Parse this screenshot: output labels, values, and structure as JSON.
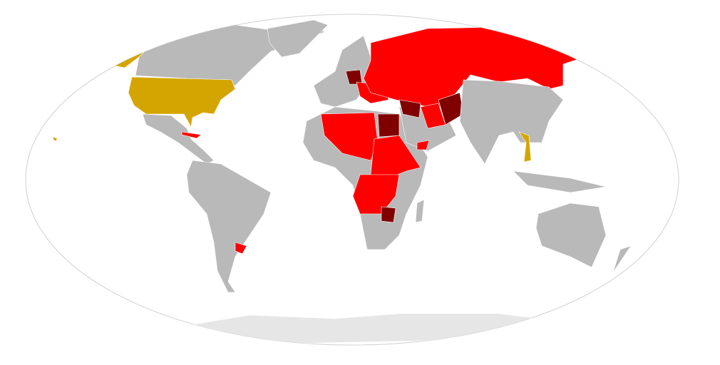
{
  "map": {
    "projection": "Robinson",
    "colors": {
      "background": "#ffffff",
      "outline": "#d0d0d0",
      "other": "#b9b9b9",
      "antarctica": "#e6e6e6",
      "red": "#ff0000",
      "dark_red": "#800000",
      "gold": "#d4a500"
    }
  }
}
